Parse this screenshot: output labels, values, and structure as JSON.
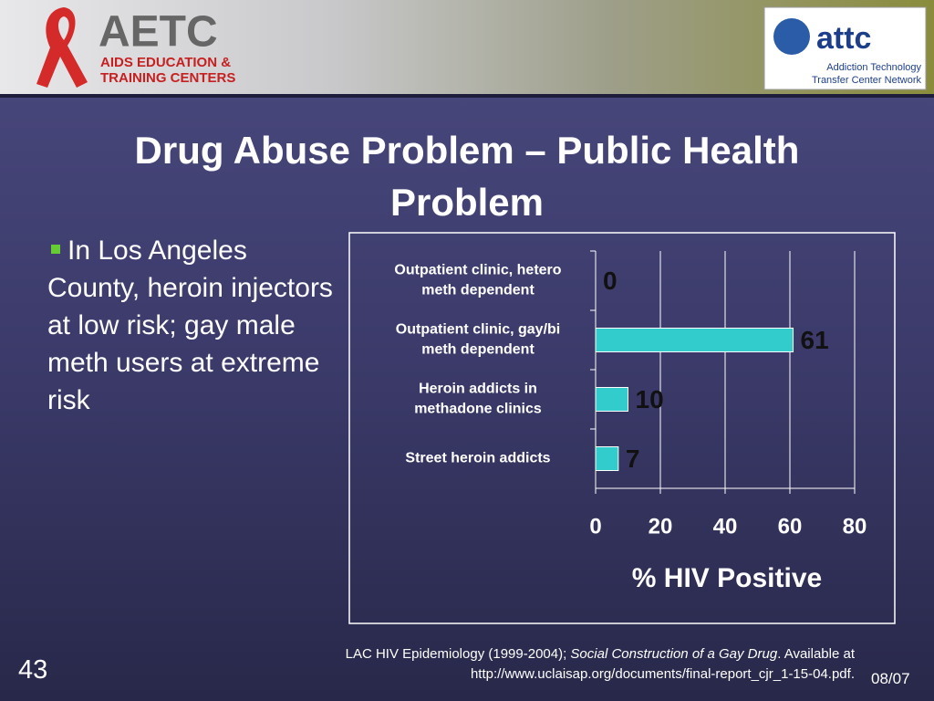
{
  "header": {
    "left_logo": {
      "name": "AETC",
      "lines": [
        "AIDS EDUCATION &",
        "TRAINING CENTERS"
      ]
    },
    "right_logo": {
      "name": "attc",
      "lines": [
        "Addiction Technology",
        "Transfer Center Network"
      ]
    }
  },
  "title": "Drug Abuse Problem – Public Health Problem",
  "bullet": "In Los Angeles County, heroin injectors at low risk; gay male meth users at extreme risk",
  "chart_data": {
    "type": "bar",
    "orientation": "horizontal",
    "categories": [
      [
        "Outpatient clinic, hetero",
        "meth dependent"
      ],
      [
        "Outpatient clinic, gay/bi",
        "meth dependent"
      ],
      [
        "Heroin addicts in",
        "methadone clinics"
      ],
      [
        "Street heroin addicts"
      ]
    ],
    "values": [
      0,
      61,
      10,
      7
    ],
    "color": "#33cccc",
    "xlim": [
      0,
      80
    ],
    "xticks": [
      0,
      20,
      40,
      60,
      80
    ],
    "xlabel": "% HIV Positive",
    "grid": true
  },
  "citation": {
    "plain": "LAC HIV Epidemiology (1999-2004); ",
    "italic": "Social Construction of a Gay Drug",
    "after": ". Available at",
    "url": "http://www.uclaisap.org/documents/final-report_cjr_1-15-04.pdf."
  },
  "slide_number": "43",
  "date": "08/07"
}
